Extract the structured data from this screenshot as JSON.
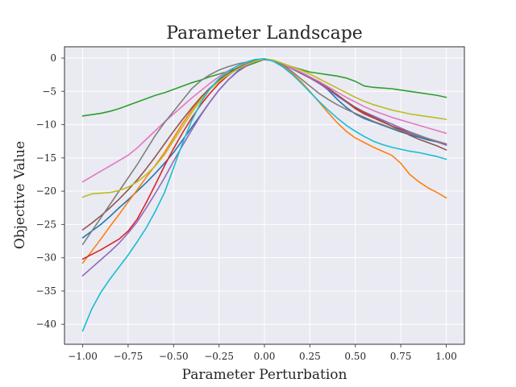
{
  "chart_data": {
    "type": "line",
    "title": "Parameter Landscape",
    "xlabel": "Parameter Perturbation",
    "ylabel": "Objective Value",
    "xlim": [
      -1.1,
      1.1
    ],
    "ylim": [
      -43,
      1.7
    ],
    "xticks": [
      -1.0,
      -0.75,
      -0.5,
      -0.25,
      0.0,
      0.25,
      0.5,
      0.75,
      1.0
    ],
    "xtick_labels": [
      "−1.00",
      "−0.75",
      "−0.50",
      "−0.25",
      "0.00",
      "0.25",
      "0.50",
      "0.75",
      "1.00"
    ],
    "yticks": [
      0,
      -5,
      -10,
      -15,
      -20,
      -25,
      -30,
      -35,
      -40
    ],
    "ytick_labels": [
      "0",
      "−5",
      "−10",
      "−15",
      "−20",
      "−25",
      "−30",
      "−35",
      "−40"
    ],
    "grid": true,
    "background": "#eaeaf2",
    "x": [
      -1.0,
      -0.95,
      -0.9,
      -0.85,
      -0.8,
      -0.75,
      -0.7,
      -0.65,
      -0.6,
      -0.55,
      -0.5,
      -0.45,
      -0.4,
      -0.35,
      -0.3,
      -0.25,
      -0.2,
      -0.15,
      -0.1,
      -0.05,
      0.0,
      0.05,
      0.1,
      0.15,
      0.2,
      0.25,
      0.3,
      0.35,
      0.4,
      0.45,
      0.5,
      0.55,
      0.6,
      0.65,
      0.7,
      0.75,
      0.8,
      0.85,
      0.9,
      0.95,
      1.0
    ],
    "series": [
      {
        "color": "#1f77b4",
        "values": [
          -27.0,
          -26.0,
          -25.0,
          -23.8,
          -22.5,
          -21.3,
          -20.0,
          -18.7,
          -17.3,
          -15.8,
          -14.2,
          -12.3,
          -10.4,
          -8.5,
          -6.6,
          -4.8,
          -3.3,
          -2.0,
          -1.0,
          -0.4,
          -0.2,
          -0.4,
          -0.9,
          -1.5,
          -2.1,
          -2.8,
          -3.7,
          -4.8,
          -6.2,
          -7.4,
          -8.4,
          -9.1,
          -9.6,
          -10.1,
          -10.6,
          -11.1,
          -11.5,
          -11.9,
          -12.3,
          -12.6,
          -13.0
        ]
      },
      {
        "color": "#ff7f0e",
        "values": [
          -30.8,
          -29.0,
          -27.2,
          -25.3,
          -23.5,
          -21.6,
          -19.8,
          -17.9,
          -16.1,
          -14.2,
          -12.0,
          -9.8,
          -7.8,
          -6.0,
          -4.6,
          -3.3,
          -2.3,
          -1.5,
          -0.9,
          -0.4,
          -0.2,
          -0.4,
          -1.2,
          -2.2,
          -3.5,
          -5.0,
          -6.6,
          -8.2,
          -9.7,
          -11.0,
          -12.0,
          -12.7,
          -13.4,
          -14.0,
          -14.6,
          -15.8,
          -17.5,
          -18.6,
          -19.5,
          -20.2,
          -21.0
        ]
      },
      {
        "color": "#2ca02c",
        "values": [
          -8.7,
          -8.5,
          -8.3,
          -8.0,
          -7.6,
          -7.1,
          -6.6,
          -6.1,
          -5.6,
          -5.2,
          -4.7,
          -4.2,
          -3.7,
          -3.3,
          -2.8,
          -2.4,
          -2.0,
          -1.6,
          -1.2,
          -0.7,
          -0.2,
          -0.4,
          -0.9,
          -1.3,
          -1.7,
          -2.1,
          -2.3,
          -2.5,
          -2.7,
          -3.0,
          -3.5,
          -4.2,
          -4.4,
          -4.5,
          -4.6,
          -4.8,
          -5.0,
          -5.2,
          -5.4,
          -5.6,
          -5.9
        ]
      },
      {
        "color": "#d62728",
        "values": [
          -30.2,
          -29.5,
          -28.8,
          -28.0,
          -27.2,
          -26.0,
          -24.2,
          -21.7,
          -19.0,
          -16.2,
          -13.6,
          -11.2,
          -9.0,
          -7.0,
          -5.3,
          -3.8,
          -2.6,
          -1.6,
          -0.9,
          -0.4,
          -0.2,
          -0.4,
          -0.9,
          -1.5,
          -2.2,
          -2.9,
          -3.7,
          -4.6,
          -5.6,
          -6.6,
          -7.6,
          -8.4,
          -9.0,
          -9.6,
          -10.2,
          -10.7,
          -11.2,
          -11.7,
          -12.1,
          -12.5,
          -12.9
        ]
      },
      {
        "color": "#9467bd",
        "values": [
          -32.7,
          -31.5,
          -30.3,
          -29.1,
          -27.8,
          -26.3,
          -24.6,
          -22.5,
          -20.3,
          -18.0,
          -15.5,
          -13.1,
          -10.8,
          -8.6,
          -6.6,
          -4.8,
          -3.3,
          -2.1,
          -1.2,
          -0.5,
          -0.2,
          -0.4,
          -1.0,
          -1.6,
          -2.3,
          -3.0,
          -3.8,
          -4.7,
          -5.7,
          -6.6,
          -7.4,
          -8.1,
          -8.7,
          -9.3,
          -9.9,
          -10.5,
          -11.1,
          -11.6,
          -12.1,
          -12.6,
          -13.1
        ]
      },
      {
        "color": "#8c564b",
        "values": [
          -25.8,
          -24.8,
          -23.7,
          -22.5,
          -21.2,
          -19.8,
          -18.3,
          -16.6,
          -14.8,
          -12.9,
          -11.0,
          -9.2,
          -7.5,
          -5.9,
          -4.5,
          -3.3,
          -2.3,
          -1.5,
          -0.9,
          -0.4,
          -0.2,
          -0.4,
          -0.9,
          -1.5,
          -2.2,
          -2.9,
          -3.6,
          -4.5,
          -5.5,
          -6.5,
          -7.4,
          -8.2,
          -8.9,
          -9.5,
          -10.2,
          -10.9,
          -11.6,
          -12.2,
          -12.7,
          -13.2,
          -13.8
        ]
      },
      {
        "color": "#e377c2",
        "values": [
          -18.6,
          -17.8,
          -17.0,
          -16.2,
          -15.4,
          -14.6,
          -13.5,
          -12.2,
          -10.9,
          -9.6,
          -8.4,
          -7.2,
          -6.0,
          -4.9,
          -3.8,
          -2.8,
          -1.9,
          -1.2,
          -0.7,
          -0.3,
          -0.2,
          -0.4,
          -0.9,
          -1.5,
          -2.1,
          -2.8,
          -3.5,
          -4.3,
          -5.1,
          -5.9,
          -6.6,
          -7.3,
          -7.9,
          -8.4,
          -8.9,
          -9.3,
          -9.7,
          -10.1,
          -10.5,
          -10.9,
          -11.3
        ]
      },
      {
        "color": "#7f7f7f",
        "values": [
          -28.0,
          -26.0,
          -24.0,
          -22.0,
          -20.0,
          -18.0,
          -16.0,
          -13.8,
          -11.6,
          -9.7,
          -8.0,
          -6.3,
          -4.6,
          -3.4,
          -2.5,
          -1.8,
          -1.3,
          -0.9,
          -0.6,
          -0.4,
          -0.2,
          -0.4,
          -1.0,
          -2.0,
          -3.1,
          -4.2,
          -5.3,
          -6.2,
          -7.0,
          -7.7,
          -8.3,
          -8.9,
          -9.5,
          -10.0,
          -10.5,
          -10.9,
          -11.3,
          -11.7,
          -12.1,
          -12.5,
          -12.9
        ]
      },
      {
        "color": "#bcbd22",
        "values": [
          -20.9,
          -20.4,
          -20.3,
          -20.2,
          -19.9,
          -19.4,
          -18.6,
          -17.5,
          -16.2,
          -14.5,
          -12.4,
          -10.3,
          -8.2,
          -6.3,
          -4.7,
          -3.5,
          -2.5,
          -1.7,
          -1.0,
          -0.5,
          -0.1,
          -0.3,
          -0.8,
          -1.3,
          -1.8,
          -2.4,
          -3.1,
          -3.8,
          -4.5,
          -5.2,
          -5.9,
          -6.5,
          -7.0,
          -7.4,
          -7.8,
          -8.1,
          -8.4,
          -8.6,
          -8.8,
          -9.0,
          -9.2
        ]
      },
      {
        "color": "#17becf",
        "values": [
          -41.0,
          -37.7,
          -35.2,
          -33.2,
          -31.4,
          -29.6,
          -27.6,
          -25.5,
          -23.0,
          -20.2,
          -16.5,
          -12.7,
          -9.4,
          -6.7,
          -4.6,
          -3.1,
          -2.0,
          -1.2,
          -0.6,
          -0.2,
          -0.1,
          -0.5,
          -1.3,
          -2.4,
          -3.7,
          -5.1,
          -6.5,
          -7.8,
          -9.0,
          -10.1,
          -11.0,
          -11.8,
          -12.5,
          -13.0,
          -13.4,
          -13.7,
          -14.0,
          -14.2,
          -14.5,
          -14.8,
          -15.2
        ]
      }
    ]
  }
}
